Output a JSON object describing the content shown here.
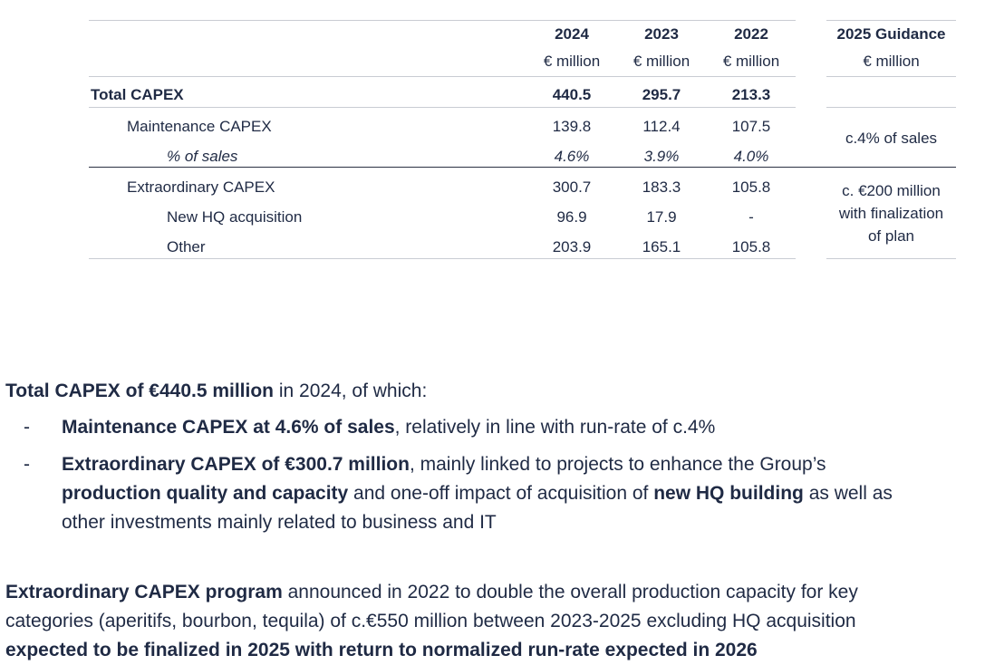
{
  "table": {
    "years": [
      {
        "year": "2024",
        "unit": "€ million"
      },
      {
        "year": "2023",
        "unit": "€ million"
      },
      {
        "year": "2022",
        "unit": "€ million"
      }
    ],
    "guidance_header": {
      "title": "2025 Guidance",
      "unit": "€ million"
    },
    "rows": [
      {
        "label": "Total CAPEX",
        "values": [
          "440.5",
          "295.7",
          "213.3"
        ]
      },
      {
        "label": "Maintenance CAPEX",
        "values": [
          "139.8",
          "112.4",
          "107.5"
        ]
      },
      {
        "label": "% of sales",
        "values": [
          "4.6%",
          "3.9%",
          "4.0%"
        ]
      },
      {
        "label": "Extraordinary CAPEX",
        "values": [
          "300.7",
          "183.3",
          "105.8"
        ]
      },
      {
        "label": "New HQ acquisition",
        "values": [
          "96.9",
          "17.9",
          "-"
        ]
      },
      {
        "label": "Other",
        "values": [
          "203.9",
          "165.1",
          "105.8"
        ]
      }
    ],
    "guidance_maintenance": "c.4% of sales",
    "guidance_extraordinary": [
      "c. €200 million",
      "with finalization",
      "of plan"
    ]
  },
  "summary": {
    "intro_bold": "Total CAPEX of €440.5 million",
    "intro_rest": " in 2024, of which:",
    "bullet_char": "-",
    "bullet1_bold": "Maintenance CAPEX at 4.6% of sales",
    "bullet1_rest": ", relatively in line with run-rate of c.4%",
    "bullet2_bold1": "Extraordinary CAPEX of €300.7 million",
    "bullet2_rest1": ", mainly linked to projects to enhance the Group’s",
    "bullet2_bold2": "production quality and capacity",
    "bullet2_rest2": " and one-off impact of acquisition of ",
    "bullet2_bold3": "new HQ building",
    "bullet2_rest3": " as well as",
    "bullet2_line3": "other investments mainly related to business and IT",
    "program_bold": "Extraordinary CAPEX program",
    "program_rest1": " announced in 2022 to double the overall production capacity for key",
    "program_line2": "categories (aperitifs, bourbon, tequila) of c.€550 million between 2023-2025 excluding HQ acquisition",
    "program_line3_bold": "expected to be finalized in 2025 with return to normalized run-rate expected in 2026"
  }
}
